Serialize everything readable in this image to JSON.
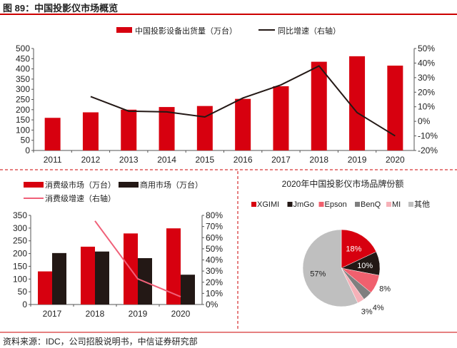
{
  "figure_title": "图 89：中国投影仪市场概览",
  "source": "资料来源：IDC，公司招股说明书，中信证券研究部",
  "chart_data": [
    {
      "type": "bar+line",
      "title": "",
      "categories": [
        "2011",
        "2012",
        "2013",
        "2014",
        "2015",
        "2016",
        "2017",
        "2018",
        "2019",
        "2020"
      ],
      "series": [
        {
          "name": "中国投影设备出货量（万台）",
          "type": "bar",
          "axis": "left",
          "color": "#d7000f",
          "values": [
            160,
            187,
            200,
            213,
            218,
            253,
            315,
            435,
            462,
            416
          ]
        },
        {
          "name": "同比增速（右轴）",
          "type": "line",
          "axis": "right",
          "color": "#231815",
          "values": [
            null,
            17,
            7,
            6.5,
            3,
            16,
            25,
            38,
            6,
            -10
          ]
        }
      ],
      "ylim": [
        0,
        500
      ],
      "yticks": [
        "0",
        "50",
        "100",
        "150",
        "200",
        "250",
        "300",
        "350",
        "400",
        "450",
        "500"
      ],
      "y2lim": [
        -20,
        50
      ],
      "y2ticks": [
        "-20%",
        "-10%",
        "0%",
        "10%",
        "20%",
        "30%",
        "40%",
        "50%"
      ],
      "legend": "top"
    },
    {
      "type": "bar+line",
      "title": "",
      "categories": [
        "2017",
        "2018",
        "2019",
        "2020"
      ],
      "series": [
        {
          "name": "消费级市场（万台）",
          "type": "bar",
          "axis": "left",
          "color": "#d7000f",
          "values": [
            130,
            227,
            279,
            299
          ]
        },
        {
          "name": "商用市场（万台）",
          "type": "bar",
          "axis": "left",
          "color": "#231815",
          "values": [
            202,
            208,
            182,
            117
          ]
        },
        {
          "name": "消费级增速（右轴）",
          "type": "line",
          "axis": "right",
          "color": "#f06078",
          "values": [
            null,
            75,
            23,
            7
          ]
        }
      ],
      "ylim": [
        0,
        350
      ],
      "yticks": [
        "0",
        "50",
        "100",
        "150",
        "200",
        "250",
        "300",
        "350"
      ],
      "y2lim": [
        0,
        80
      ],
      "y2ticks": [
        "0%",
        "10%",
        "20%",
        "30%",
        "40%",
        "50%",
        "60%",
        "70%",
        "80%"
      ],
      "legend": "top-left"
    },
    {
      "type": "pie",
      "title": "2020年中国投影仪市场品牌份额",
      "categories": [
        "XGIMI",
        "JmGo",
        "Epson",
        "BenQ",
        "MI",
        "其他"
      ],
      "values": [
        18,
        10,
        8,
        4,
        3,
        57
      ],
      "labels": [
        "18%",
        "10%",
        "8%",
        "4%",
        "3%",
        "57%"
      ],
      "colors": [
        "#d7000f",
        "#231815",
        "#f0606e",
        "#7f7f7f",
        "#f6b1b8",
        "#bfbfbf"
      ],
      "legend": "top"
    }
  ]
}
